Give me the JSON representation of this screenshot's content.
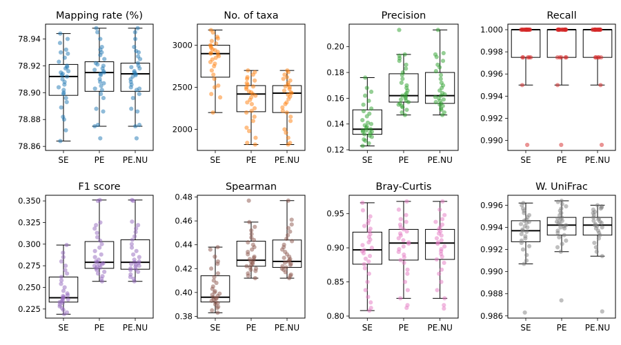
{
  "chart_data": [
    {
      "type": "box",
      "title": "Mapping rate (%)",
      "categories": [
        "SE",
        "PE",
        "PE.NU"
      ],
      "color": "#1f77b4",
      "yticks": [
        78.86,
        78.88,
        78.9,
        78.92,
        78.94
      ],
      "ytick_labels": [
        "78.86",
        "78.88",
        "78.90",
        "78.92",
        "78.94"
      ],
      "ylim": [
        78.857,
        78.951
      ],
      "boxes": [
        {
          "whislo": 78.864,
          "q1": 78.898,
          "med": 78.912,
          "q3": 78.921,
          "whishi": 78.944
        },
        {
          "whislo": 78.875,
          "q1": 78.901,
          "med": 78.915,
          "q3": 78.923,
          "whishi": 78.948
        },
        {
          "whislo": 78.875,
          "q1": 78.901,
          "med": 78.914,
          "q3": 78.922,
          "whishi": 78.948
        }
      ],
      "points": [
        [
          78.864,
          78.872,
          78.88,
          78.882,
          78.889,
          78.893,
          78.896,
          78.899,
          78.9,
          78.902,
          78.904,
          78.906,
          78.908,
          78.91,
          78.912,
          78.913,
          78.914,
          78.915,
          78.916,
          78.918,
          78.919,
          78.92,
          78.923,
          78.926,
          78.929,
          78.93,
          78.932,
          78.937,
          78.94,
          78.944
        ],
        [
          78.866,
          78.875,
          78.876,
          78.886,
          78.888,
          78.896,
          78.899,
          78.902,
          78.903,
          78.905,
          78.907,
          78.908,
          78.91,
          78.913,
          78.914,
          78.915,
          78.916,
          78.917,
          78.918,
          78.92,
          78.921,
          78.922,
          78.925,
          78.928,
          78.93,
          78.932,
          78.934,
          78.94,
          78.945,
          78.948
        ],
        [
          78.866,
          78.875,
          78.876,
          78.886,
          78.888,
          78.896,
          78.899,
          78.902,
          78.903,
          78.904,
          78.906,
          78.908,
          78.91,
          78.912,
          78.913,
          78.914,
          78.915,
          78.916,
          78.918,
          78.919,
          78.92,
          78.922,
          78.925,
          78.927,
          78.93,
          78.931,
          78.934,
          78.94,
          78.945,
          78.948
        ]
      ]
    },
    {
      "type": "box",
      "title": "No. of taxa",
      "categories": [
        "SE",
        "PE",
        "PE.NU"
      ],
      "color": "#ff7f0e",
      "yticks": [
        2000,
        2500,
        3000
      ],
      "ytick_labels": [
        "2000",
        "2500",
        "3000"
      ],
      "ylim": [
        1750,
        3250
      ],
      "boxes": [
        {
          "whislo": 2200,
          "q1": 2620,
          "med": 2900,
          "q3": 3000,
          "whishi": 3180
        },
        {
          "whislo": 1820,
          "q1": 2210,
          "med": 2420,
          "q3": 2520,
          "whishi": 2700
        },
        {
          "whislo": 1820,
          "q1": 2200,
          "med": 2430,
          "q3": 2520,
          "whishi": 2700
        }
      ],
      "points": [
        [
          2200,
          2380,
          2420,
          2500,
          2520,
          2600,
          2650,
          2700,
          2750,
          2780,
          2800,
          2830,
          2850,
          2870,
          2890,
          2900,
          2910,
          2920,
          2940,
          2950,
          2970,
          2990,
          3000,
          3020,
          3050,
          3080,
          3100,
          3150,
          3180
        ],
        [
          1820,
          1840,
          1900,
          1980,
          2020,
          2100,
          2150,
          2200,
          2220,
          2250,
          2300,
          2320,
          2350,
          2380,
          2400,
          2420,
          2440,
          2450,
          2480,
          2500,
          2510,
          2530,
          2550,
          2580,
          2600,
          2620,
          2650,
          2680,
          2700
        ],
        [
          1820,
          1840,
          1900,
          1960,
          2000,
          2100,
          2150,
          2200,
          2220,
          2260,
          2300,
          2320,
          2360,
          2390,
          2410,
          2430,
          2440,
          2460,
          2480,
          2500,
          2510,
          2530,
          2550,
          2580,
          2600,
          2620,
          2650,
          2680,
          2700
        ]
      ]
    },
    {
      "type": "box",
      "title": "Precision",
      "categories": [
        "SE",
        "PE",
        "PE.NU"
      ],
      "color": "#2ca02c",
      "yticks": [
        0.12,
        0.14,
        0.16,
        0.18,
        0.2
      ],
      "ytick_labels": [
        "0.12",
        "0.14",
        "0.16",
        "0.18",
        "0.20"
      ],
      "ylim": [
        0.1195,
        0.2175
      ],
      "boxes": [
        {
          "whislo": 0.123,
          "q1": 0.132,
          "med": 0.136,
          "q3": 0.151,
          "whishi": 0.176
        },
        {
          "whislo": 0.147,
          "q1": 0.157,
          "med": 0.162,
          "q3": 0.179,
          "whishi": 0.194
        },
        {
          "whislo": 0.147,
          "q1": 0.156,
          "med": 0.162,
          "q3": 0.18,
          "whishi": 0.213
        }
      ],
      "points": [
        [
          0.123,
          0.125,
          0.127,
          0.128,
          0.13,
          0.131,
          0.132,
          0.133,
          0.134,
          0.134,
          0.135,
          0.135,
          0.136,
          0.137,
          0.138,
          0.139,
          0.14,
          0.141,
          0.143,
          0.146,
          0.148,
          0.15,
          0.152,
          0.155,
          0.158,
          0.162,
          0.165,
          0.168,
          0.176
        ],
        [
          0.147,
          0.149,
          0.151,
          0.153,
          0.154,
          0.155,
          0.156,
          0.157,
          0.158,
          0.159,
          0.16,
          0.161,
          0.162,
          0.163,
          0.164,
          0.166,
          0.168,
          0.17,
          0.172,
          0.175,
          0.178,
          0.18,
          0.183,
          0.186,
          0.189,
          0.191,
          0.193,
          0.194,
          0.213
        ],
        [
          0.147,
          0.149,
          0.151,
          0.152,
          0.154,
          0.155,
          0.156,
          0.157,
          0.158,
          0.159,
          0.16,
          0.161,
          0.162,
          0.163,
          0.164,
          0.166,
          0.168,
          0.17,
          0.172,
          0.175,
          0.178,
          0.181,
          0.184,
          0.186,
          0.189,
          0.192,
          0.194,
          0.195,
          0.213
        ]
      ]
    },
    {
      "type": "box",
      "title": "Recall",
      "categories": [
        "SE",
        "PE",
        "PE.NU"
      ],
      "color": "#d62728",
      "yticks": [
        0.99,
        0.992,
        0.994,
        0.996,
        0.998,
        1.0
      ],
      "ytick_labels": [
        "0.990",
        "0.992",
        "0.994",
        "0.996",
        "0.998",
        "1.000"
      ],
      "ylim": [
        0.9891,
        1.0005
      ],
      "boxes": [
        {
          "whislo": 0.995,
          "q1": 0.9975,
          "med": 1.0,
          "q3": 1.0,
          "whishi": 1.0
        },
        {
          "whislo": 0.995,
          "q1": 0.9975,
          "med": 1.0,
          "q3": 1.0,
          "whishi": 1.0
        },
        {
          "whislo": 0.995,
          "q1": 0.9975,
          "med": 1.0,
          "q3": 1.0,
          "whishi": 1.0
        }
      ],
      "points": [
        [
          0.9896,
          0.995,
          0.9975,
          0.9975,
          0.9975,
          0.9975,
          0.9975,
          1.0,
          1.0,
          1.0,
          1.0,
          1.0,
          1.0,
          1.0,
          1.0,
          1.0,
          1.0,
          1.0,
          1.0,
          1.0,
          1.0,
          1.0,
          1.0,
          1.0,
          1.0,
          1.0
        ],
        [
          0.9896,
          0.995,
          0.9975,
          0.9975,
          0.9975,
          0.9975,
          0.9975,
          1.0,
          1.0,
          1.0,
          1.0,
          1.0,
          1.0,
          1.0,
          1.0,
          1.0,
          1.0,
          1.0,
          1.0,
          1.0,
          1.0,
          1.0,
          1.0,
          1.0,
          1.0,
          1.0
        ],
        [
          0.9896,
          0.995,
          0.9975,
          0.9975,
          0.9975,
          0.9975,
          0.9975,
          1.0,
          1.0,
          1.0,
          1.0,
          1.0,
          1.0,
          1.0,
          1.0,
          1.0,
          1.0,
          1.0,
          1.0,
          1.0,
          1.0,
          1.0,
          1.0,
          1.0,
          1.0,
          1.0
        ]
      ]
    },
    {
      "type": "box",
      "title": "F1 score",
      "categories": [
        "SE",
        "PE",
        "PE.NU"
      ],
      "color": "#9467bd",
      "yticks": [
        0.225,
        0.25,
        0.275,
        0.3,
        0.325,
        0.35
      ],
      "ytick_labels": [
        "0.225",
        "0.250",
        "0.275",
        "0.300",
        "0.325",
        "0.350"
      ],
      "ylim": [
        0.2145,
        0.3565
      ],
      "boxes": [
        {
          "whislo": 0.219,
          "q1": 0.233,
          "med": 0.238,
          "q3": 0.262,
          "whishi": 0.299
        },
        {
          "whislo": 0.257,
          "q1": 0.272,
          "med": 0.279,
          "q3": 0.303,
          "whishi": 0.351
        },
        {
          "whislo": 0.257,
          "q1": 0.271,
          "med": 0.279,
          "q3": 0.305,
          "whishi": 0.351
        }
      ],
      "points": [
        [
          0.219,
          0.221,
          0.224,
          0.226,
          0.228,
          0.23,
          0.232,
          0.233,
          0.234,
          0.235,
          0.236,
          0.237,
          0.238,
          0.239,
          0.24,
          0.241,
          0.243,
          0.246,
          0.25,
          0.254,
          0.258,
          0.262,
          0.266,
          0.27,
          0.275,
          0.28,
          0.285,
          0.29,
          0.299
        ],
        [
          0.257,
          0.26,
          0.263,
          0.266,
          0.268,
          0.27,
          0.272,
          0.273,
          0.274,
          0.275,
          0.276,
          0.277,
          0.278,
          0.279,
          0.28,
          0.282,
          0.285,
          0.288,
          0.292,
          0.296,
          0.3,
          0.304,
          0.308,
          0.313,
          0.318,
          0.322,
          0.325,
          0.35,
          0.351
        ],
        [
          0.257,
          0.26,
          0.262,
          0.265,
          0.268,
          0.27,
          0.271,
          0.272,
          0.274,
          0.275,
          0.276,
          0.277,
          0.278,
          0.279,
          0.28,
          0.282,
          0.285,
          0.288,
          0.292,
          0.296,
          0.3,
          0.305,
          0.309,
          0.314,
          0.318,
          0.322,
          0.326,
          0.35,
          0.351
        ]
      ]
    },
    {
      "type": "box",
      "title": "Spearman",
      "categories": [
        "SE",
        "PE",
        "PE.NU"
      ],
      "color": "#8c564b",
      "yticks": [
        0.38,
        0.4,
        0.42,
        0.44,
        0.46,
        0.48
      ],
      "ytick_labels": [
        "0.38",
        "0.40",
        "0.42",
        "0.44",
        "0.46",
        "0.48"
      ],
      "ylim": [
        0.3785,
        0.4815
      ],
      "boxes": [
        {
          "whislo": 0.383,
          "q1": 0.392,
          "med": 0.396,
          "q3": 0.414,
          "whishi": 0.438
        },
        {
          "whislo": 0.412,
          "q1": 0.422,
          "med": 0.427,
          "q3": 0.443,
          "whishi": 0.459
        },
        {
          "whislo": 0.412,
          "q1": 0.421,
          "med": 0.426,
          "q3": 0.444,
          "whishi": 0.477
        }
      ],
      "points": [
        [
          0.383,
          0.385,
          0.387,
          0.388,
          0.39,
          0.391,
          0.392,
          0.393,
          0.394,
          0.395,
          0.395,
          0.396,
          0.397,
          0.398,
          0.399,
          0.4,
          0.401,
          0.403,
          0.405,
          0.408,
          0.41,
          0.413,
          0.416,
          0.42,
          0.424,
          0.426,
          0.43,
          0.436,
          0.438
        ],
        [
          0.412,
          0.414,
          0.416,
          0.418,
          0.419,
          0.42,
          0.421,
          0.422,
          0.423,
          0.424,
          0.425,
          0.426,
          0.427,
          0.428,
          0.429,
          0.43,
          0.432,
          0.434,
          0.436,
          0.438,
          0.44,
          0.442,
          0.444,
          0.446,
          0.449,
          0.452,
          0.455,
          0.459,
          0.477
        ],
        [
          0.412,
          0.414,
          0.415,
          0.417,
          0.419,
          0.42,
          0.421,
          0.422,
          0.423,
          0.424,
          0.425,
          0.426,
          0.427,
          0.428,
          0.429,
          0.43,
          0.432,
          0.434,
          0.436,
          0.438,
          0.44,
          0.443,
          0.445,
          0.448,
          0.451,
          0.454,
          0.457,
          0.461,
          0.477
        ]
      ]
    },
    {
      "type": "box",
      "title": "Bray-Curtis",
      "categories": [
        "SE",
        "PE",
        "PE.NU"
      ],
      "color": "#e377c2",
      "yticks": [
        0.8,
        0.85,
        0.9,
        0.95
      ],
      "ytick_labels": [
        "0.80",
        "0.85",
        "0.90",
        "0.95"
      ],
      "ylim": [
        0.797,
        0.977
      ],
      "boxes": [
        {
          "whislo": 0.808,
          "q1": 0.876,
          "med": 0.897,
          "q3": 0.923,
          "whishi": 0.966
        },
        {
          "whislo": 0.826,
          "q1": 0.882,
          "med": 0.907,
          "q3": 0.927,
          "whishi": 0.968
        },
        {
          "whislo": 0.826,
          "q1": 0.883,
          "med": 0.907,
          "q3": 0.927,
          "whishi": 0.968
        }
      ],
      "points": [
        [
          0.808,
          0.812,
          0.82,
          0.828,
          0.838,
          0.85,
          0.862,
          0.87,
          0.876,
          0.88,
          0.884,
          0.888,
          0.892,
          0.895,
          0.897,
          0.9,
          0.904,
          0.908,
          0.912,
          0.916,
          0.92,
          0.924,
          0.928,
          0.932,
          0.936,
          0.94,
          0.946,
          0.955,
          0.966
        ],
        [
          0.812,
          0.816,
          0.826,
          0.838,
          0.85,
          0.862,
          0.868,
          0.878,
          0.882,
          0.886,
          0.89,
          0.894,
          0.898,
          0.902,
          0.906,
          0.908,
          0.911,
          0.914,
          0.918,
          0.921,
          0.924,
          0.927,
          0.93,
          0.934,
          0.938,
          0.942,
          0.948,
          0.956,
          0.968
        ],
        [
          0.811,
          0.816,
          0.826,
          0.838,
          0.85,
          0.862,
          0.868,
          0.878,
          0.883,
          0.887,
          0.891,
          0.895,
          0.898,
          0.902,
          0.906,
          0.908,
          0.911,
          0.914,
          0.918,
          0.921,
          0.924,
          0.927,
          0.93,
          0.934,
          0.938,
          0.942,
          0.948,
          0.956,
          0.968
        ]
      ]
    },
    {
      "type": "box",
      "title": "W. UniFrac",
      "categories": [
        "SE",
        "PE",
        "PE.NU"
      ],
      "color": "#7f7f7f",
      "yticks": [
        0.986,
        0.988,
        0.99,
        0.992,
        0.994,
        0.996
      ],
      "ytick_labels": [
        "0.986",
        "0.988",
        "0.990",
        "0.992",
        "0.994",
        "0.996"
      ],
      "ylim": [
        0.9858,
        0.9969
      ],
      "boxes": [
        {
          "whislo": 0.9907,
          "q1": 0.9927,
          "med": 0.9937,
          "q3": 0.9946,
          "whishi": 0.9962
        },
        {
          "whislo": 0.9918,
          "q1": 0.9933,
          "med": 0.9942,
          "q3": 0.9949,
          "whishi": 0.9964
        },
        {
          "whislo": 0.9914,
          "q1": 0.9933,
          "med": 0.9942,
          "q3": 0.9949,
          "whishi": 0.996
        }
      ],
      "points": [
        [
          0.9863,
          0.9907,
          0.991,
          0.9915,
          0.992,
          0.9923,
          0.9926,
          0.9928,
          0.993,
          0.9932,
          0.9934,
          0.9936,
          0.9937,
          0.9938,
          0.994,
          0.9941,
          0.9943,
          0.9944,
          0.9945,
          0.9946,
          0.9947,
          0.9949,
          0.9951,
          0.9953,
          0.9955,
          0.9957,
          0.996,
          0.9962
        ],
        [
          0.9874,
          0.9918,
          0.9922,
          0.9925,
          0.9928,
          0.9931,
          0.9933,
          0.9935,
          0.9937,
          0.9939,
          0.994,
          0.9941,
          0.9942,
          0.9943,
          0.9944,
          0.9945,
          0.9946,
          0.9947,
          0.9948,
          0.9949,
          0.9951,
          0.9953,
          0.9955,
          0.9957,
          0.9959,
          0.9961,
          0.9963,
          0.9964
        ],
        [
          0.9864,
          0.9914,
          0.9918,
          0.9922,
          0.9926,
          0.993,
          0.9933,
          0.9935,
          0.9937,
          0.9939,
          0.994,
          0.9941,
          0.9942,
          0.9943,
          0.9944,
          0.9945,
          0.9946,
          0.9947,
          0.9948,
          0.9949,
          0.9951,
          0.9953,
          0.9954,
          0.9956,
          0.9957,
          0.9958,
          0.9959,
          0.996
        ]
      ]
    }
  ]
}
